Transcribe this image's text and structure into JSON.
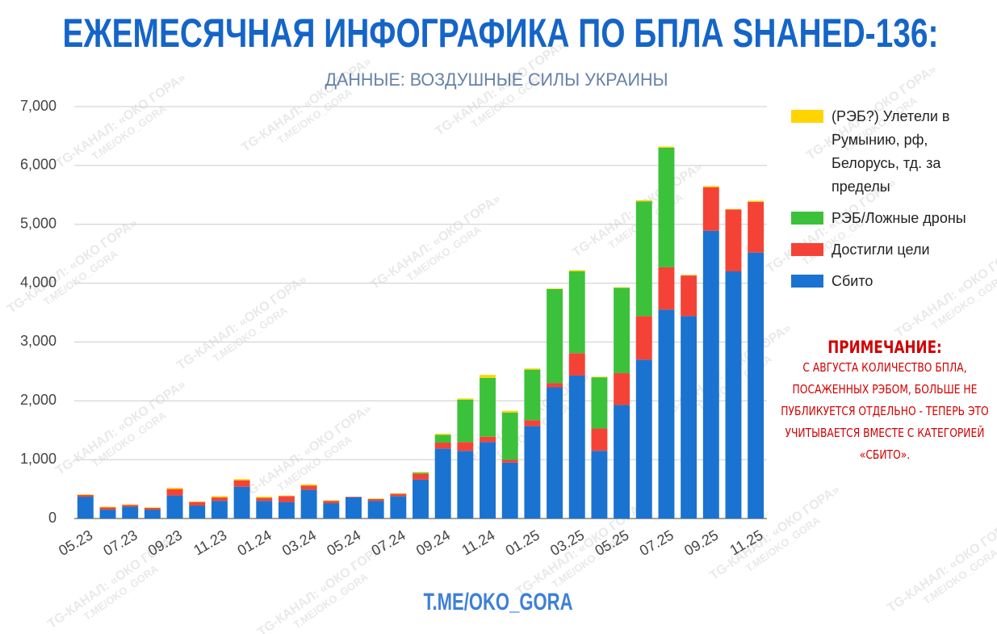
{
  "chart_data": {
    "type": "stacked-bar",
    "title": "ЕЖЕМЕСЯЧНАЯ ИНФОГРАФИКА ПО БПЛА SHAHED-136:",
    "subtitle": "ДАННЫЕ: ВОЗДУШНЫЕ СИЛЫ УКРАИНЫ",
    "categories": [
      "05.23",
      null,
      "07.23",
      null,
      "09.23",
      null,
      "11.23",
      null,
      "01.24",
      null,
      "03.24",
      null,
      "05.24",
      null,
      "07.24",
      null,
      "09.24",
      null,
      "11.24",
      null,
      "01.25",
      null,
      "03.25",
      null,
      "05.25",
      null,
      "07.25",
      null,
      "09.25",
      null,
      "11.25"
    ],
    "series": [
      {
        "name": "Сбито",
        "color": "#1a73d0",
        "values": [
          370,
          150,
          200,
          150,
          390,
          220,
          300,
          540,
          300,
          280,
          490,
          260,
          360,
          300,
          380,
          660,
          1190,
          1150,
          1300,
          950,
          1570,
          2230,
          2430,
          1150,
          1930,
          2700,
          3550,
          3440,
          4890,
          4200,
          4520
        ]
      },
      {
        "name": "Достигли цели",
        "color": "#f44336",
        "values": [
          30,
          40,
          30,
          30,
          110,
          60,
          60,
          110,
          50,
          100,
          70,
          40,
          10,
          30,
          40,
          100,
          100,
          150,
          90,
          50,
          100,
          70,
          380,
          380,
          540,
          740,
          720,
          690,
          740,
          1050,
          860
        ]
      },
      {
        "name": "РЭБ/Ложные дроны",
        "color": "#3cc13b",
        "values": [
          0,
          0,
          0,
          0,
          0,
          0,
          0,
          0,
          0,
          0,
          0,
          0,
          0,
          0,
          0,
          20,
          130,
          720,
          1000,
          800,
          860,
          1600,
          1390,
          870,
          1450,
          1950,
          2030,
          0,
          0,
          0,
          0
        ]
      },
      {
        "name": "(РЭБ?) Улетели в Румынию, рф, Белорусь, тд. за пределы",
        "color": "#ffd400",
        "values": [
          10,
          10,
          10,
          10,
          20,
          10,
          20,
          20,
          20,
          10,
          20,
          10,
          0,
          10,
          10,
          10,
          20,
          20,
          50,
          30,
          20,
          10,
          20,
          10,
          10,
          20,
          20,
          10,
          20,
          10,
          20
        ]
      }
    ],
    "ylim": [
      0,
      7000
    ],
    "yticks": [
      0,
      {
        "value": 1000,
        "label": "1,000"
      },
      {
        "value": 2000,
        "label": "2,000"
      },
      {
        "value": 3000,
        "label": "3,000"
      },
      {
        "value": 4000,
        "label": "4,000"
      },
      {
        "value": 5000,
        "label": "5,000"
      },
      {
        "value": 6000,
        "label": "6,000"
      },
      {
        "value": 7000,
        "label": "7,000"
      }
    ],
    "grid": true,
    "legend": "right",
    "note_title": "ПРИМЕЧАНИЕ:",
    "note": "С АВГУСТА КОЛИЧЕСТВО БПЛА, ПОСАЖЕННЫХ РЭБОМ, БОЛЬШЕ НЕ ПУБЛИКУЕТСЯ ОТДЕЛЬНО - ТЕПЕРЬ ЭТО УЧИТЫВАЕТСЯ ВМЕСТЕ С КАТЕГОРИЕЙ «СБИТО».",
    "footer": "T.ME/OKO_GORA",
    "watermark": [
      "TG-КАНАЛ: «ОКО ГОРА»",
      "T.ME/OKO_GORA"
    ]
  }
}
